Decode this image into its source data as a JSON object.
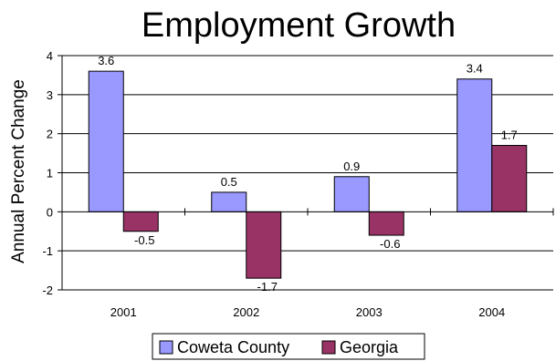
{
  "chart_data": {
    "type": "bar",
    "title": "Employment Growth",
    "xlabel": "",
    "ylabel": "Annual Percent Change",
    "categories": [
      "2001",
      "2002",
      "2003",
      "2004"
    ],
    "series": [
      {
        "name": "Coweta County",
        "values": [
          3.6,
          0.5,
          0.9,
          3.4
        ],
        "labels": [
          "3.6",
          "0.5",
          "0.9",
          "3.4"
        ],
        "color": "#9999ff"
      },
      {
        "name": "Georgia",
        "values": [
          -0.5,
          -1.7,
          -0.6,
          1.7
        ],
        "labels": [
          "-0.5",
          "-1.7",
          "-0.6",
          "1.7"
        ],
        "color": "#993366"
      }
    ],
    "ylim": [
      -2,
      4
    ],
    "yticks": [
      4,
      3,
      2,
      1,
      0,
      -1,
      -2
    ],
    "ytick_labels": [
      "4",
      "3",
      "2",
      "1",
      "0",
      "-1",
      "-2"
    ],
    "grid": true,
    "legend": "bottom"
  }
}
